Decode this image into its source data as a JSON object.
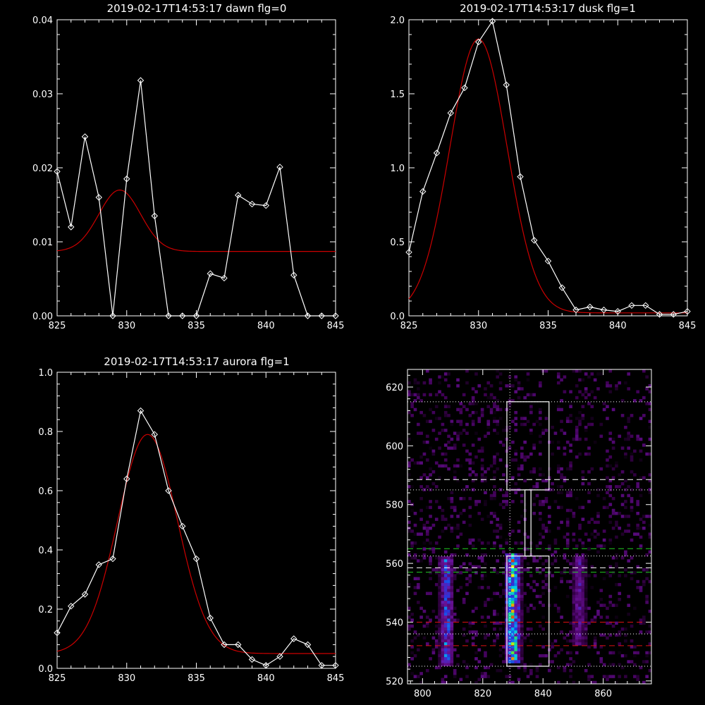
{
  "chart_data": [
    {
      "type": "line",
      "title": "2019-02-17T14:53:17 dawn flg=0",
      "xlim": [
        825,
        845
      ],
      "ylim": [
        0,
        0.04
      ],
      "xticks": [
        825,
        830,
        835,
        840,
        845
      ],
      "yticks": [
        0,
        0.01,
        0.02,
        0.03,
        0.04
      ],
      "yticklabels": [
        "0.00",
        "0.01",
        "0.02",
        "0.03",
        "0.04"
      ],
      "series": [
        {
          "color": "#ffffff",
          "markers": "diamond",
          "x": [
            825,
            826,
            827,
            828,
            829,
            830,
            831,
            832,
            833,
            834,
            835,
            836,
            837,
            838,
            839,
            840,
            841,
            842,
            843,
            844,
            845
          ],
          "y": [
            0.0195,
            0.012,
            0.0242,
            0.016,
            0.0,
            0.0185,
            0.0318,
            0.0135,
            0.0,
            0.0,
            0.0,
            0.0057,
            0.0051,
            0.0163,
            0.0151,
            0.0149,
            0.0201,
            0.0055,
            0.0,
            0.0,
            0.0
          ]
        },
        {
          "color": "#cc0000",
          "fit": "gaussian",
          "center": 829.5,
          "sigma": 1.5,
          "amplitude": 0.0083,
          "baseline": 0.0087
        }
      ]
    },
    {
      "type": "line",
      "title": "2019-02-17T14:53:17 dusk flg=1",
      "xlim": [
        825,
        845
      ],
      "ylim": [
        0,
        2.0
      ],
      "xticks": [
        825,
        830,
        835,
        840,
        845
      ],
      "yticks": [
        0,
        0.5,
        1.0,
        1.5,
        2.0
      ],
      "yticklabels": [
        "0.0",
        "0.5",
        "1.0",
        "1.5",
        "2.0"
      ],
      "series": [
        {
          "color": "#ffffff",
          "markers": "diamond",
          "x": [
            825,
            826,
            827,
            828,
            829,
            830,
            831,
            832,
            833,
            834,
            835,
            836,
            837,
            838,
            839,
            840,
            841,
            842,
            843,
            844,
            845
          ],
          "y": [
            0.43,
            0.84,
            1.1,
            1.37,
            1.54,
            1.85,
            1.99,
            1.56,
            0.94,
            0.51,
            0.37,
            0.19,
            0.04,
            0.06,
            0.04,
            0.03,
            0.07,
            0.07,
            0.01,
            0.01,
            0.03
          ]
        },
        {
          "color": "#cc0000",
          "fit": "gaussian",
          "center": 830.0,
          "sigma": 2.05,
          "amplitude": 1.85,
          "baseline": 0.02
        }
      ]
    },
    {
      "type": "line",
      "title": "2019-02-17T14:53:17 aurora flg=1",
      "xlim": [
        825,
        845
      ],
      "ylim": [
        0,
        1.0
      ],
      "xticks": [
        825,
        830,
        835,
        840,
        845
      ],
      "yticks": [
        0,
        0.2,
        0.4,
        0.6,
        0.8,
        1.0
      ],
      "yticklabels": [
        "0.0",
        "0.2",
        "0.4",
        "0.6",
        "0.8",
        "1.0"
      ],
      "series": [
        {
          "color": "#ffffff",
          "markers": "diamond",
          "x": [
            825,
            826,
            827,
            828,
            829,
            830,
            831,
            832,
            833,
            834,
            835,
            836,
            837,
            838,
            839,
            840,
            841,
            842,
            843,
            844,
            845
          ],
          "y": [
            0.12,
            0.21,
            0.25,
            0.35,
            0.37,
            0.64,
            0.87,
            0.79,
            0.6,
            0.48,
            0.37,
            0.17,
            0.08,
            0.08,
            0.03,
            0.01,
            0.04,
            0.1,
            0.08,
            0.01,
            0.01
          ]
        },
        {
          "color": "#cc0000",
          "fit": "gaussian",
          "center": 831.5,
          "sigma": 2.15,
          "amplitude": 0.74,
          "baseline": 0.05
        }
      ]
    },
    {
      "type": "heatmap",
      "title": "",
      "xlim": [
        795,
        876
      ],
      "ylim": [
        519,
        626
      ],
      "xticks": [
        800,
        820,
        840,
        860
      ],
      "yticks": [
        520,
        540,
        560,
        580,
        600,
        620
      ],
      "columns": [
        {
          "center": 808,
          "half_width": 2.5,
          "y_min": 525,
          "y_max": 562,
          "peak": 0.65
        },
        {
          "center": 830,
          "half_width": 3.0,
          "y_min": 526,
          "y_max": 563,
          "peak": 1.0
        },
        {
          "center": 852,
          "half_width": 2.5,
          "y_min": 532,
          "y_max": 562,
          "peak": 0.4
        }
      ],
      "overlays": {
        "white_dotted_h": [
          615,
          585,
          562.5,
          536,
          525
        ],
        "white_dotted_v": [
          829
        ],
        "white_dashed_h": [
          588.5,
          558.5
        ],
        "green_dashed_h": [
          565,
          557
        ],
        "red_dashed_h": [
          540,
          532
        ],
        "box_upper": {
          "x": [
            828,
            842
          ],
          "y": [
            585,
            615
          ]
        },
        "box_middle": {
          "x": [
            834,
            836
          ],
          "y": [
            562.5,
            585
          ]
        },
        "box_lower": {
          "x": [
            828,
            842
          ],
          "y": [
            525,
            562.5
          ]
        }
      }
    }
  ]
}
